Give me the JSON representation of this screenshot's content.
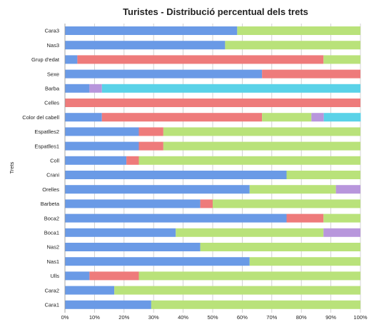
{
  "chart_data": {
    "type": "bar",
    "orientation": "horizontal",
    "stacked": true,
    "title": "Turistes - Distribució percentual dels trets",
    "xlabel": "",
    "ylabel": "Trets",
    "xlim": [
      0,
      100
    ],
    "x_ticks": [
      "0%",
      "10%",
      "20%",
      "30%",
      "40%",
      "50%",
      "60%",
      "70%",
      "80%",
      "90%",
      "100%"
    ],
    "grid": true,
    "legend": "none",
    "categories": [
      "Cara3",
      "Nas3",
      "Grup d'edat",
      "Sexe",
      "Barba",
      "Celles",
      "Color del cabell",
      "Espatlles2",
      "Espatlles1",
      "Coll",
      "Crani",
      "Orelles",
      "Barbeta",
      "Boca2",
      "Boca1",
      "Nas2",
      "Nas1",
      "Ulls",
      "Cara2",
      "Cara1"
    ],
    "series": [
      {
        "color": "#6a9ae6",
        "values": [
          58.3,
          54.2,
          4.2,
          66.7,
          8.3,
          0,
          12.5,
          25,
          25,
          20.8,
          75,
          62.5,
          45.8,
          75,
          37.5,
          45.8,
          62.5,
          8.3,
          16.7,
          29.2
        ]
      },
      {
        "color": "#ee7b7b",
        "values": [
          0,
          0,
          83.3,
          33.3,
          0,
          100,
          54.2,
          8.3,
          8.3,
          4.2,
          0,
          0,
          4.2,
          12.5,
          0,
          0,
          0,
          16.7,
          0,
          0
        ]
      },
      {
        "color": "#b9e27a",
        "values": [
          41.7,
          45.8,
          12.5,
          0,
          0,
          0,
          16.7,
          66.7,
          66.7,
          75,
          25,
          29.2,
          50,
          12.5,
          50,
          54.2,
          37.5,
          75,
          83.3,
          70.8
        ]
      },
      {
        "color": "#b896dc",
        "values": [
          0,
          0,
          0,
          0,
          4.2,
          0,
          4.2,
          0,
          0,
          0,
          0,
          8.3,
          0,
          0,
          12.5,
          0,
          0,
          0,
          0,
          0
        ]
      },
      {
        "color": "#5ad2e8",
        "values": [
          0,
          0,
          0,
          0,
          87.5,
          0,
          12.5,
          0,
          0,
          0,
          0,
          0,
          0,
          0,
          0,
          0,
          0,
          0,
          0,
          0
        ]
      }
    ]
  }
}
